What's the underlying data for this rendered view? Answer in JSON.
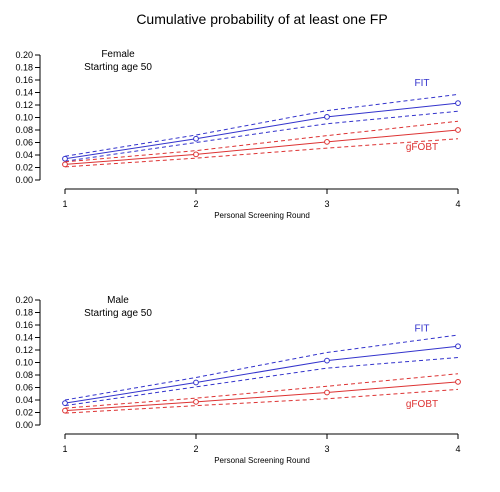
{
  "title": "Cumulative probability of at least one FP",
  "colors": {
    "FIT": "#3333cc",
    "gFOBT": "#dd3333",
    "axis": "#000000"
  },
  "chart_data": [
    {
      "type": "line",
      "annotation": [
        "Female",
        "Starting age 50"
      ],
      "xlabel": "Personal Screening Round",
      "ylabel": "",
      "x": [
        1,
        2,
        3,
        4
      ],
      "xticks": [
        "1",
        "2",
        "3",
        "4"
      ],
      "ylim": [
        0,
        0.2
      ],
      "yticks": [
        "0.00",
        "0.02",
        "0.04",
        "0.06",
        "0.08",
        "0.10",
        "0.12",
        "0.14",
        "0.16",
        "0.18",
        "0.20"
      ],
      "series": [
        {
          "name": "FIT",
          "values": [
            0.034,
            0.066,
            0.101,
            0.123
          ],
          "lower": [
            0.03,
            0.06,
            0.09,
            0.11
          ],
          "upper": [
            0.038,
            0.072,
            0.111,
            0.137
          ]
        },
        {
          "name": "gFOBT",
          "values": [
            0.025,
            0.041,
            0.061,
            0.08
          ],
          "lower": [
            0.021,
            0.035,
            0.051,
            0.066
          ],
          "upper": [
            0.029,
            0.047,
            0.071,
            0.094
          ]
        }
      ]
    },
    {
      "type": "line",
      "annotation": [
        "Male",
        "Starting age 50"
      ],
      "xlabel": "Personal Screening Round",
      "ylabel": "",
      "x": [
        1,
        2,
        3,
        4
      ],
      "xticks": [
        "1",
        "2",
        "3",
        "4"
      ],
      "ylim": [
        0,
        0.2
      ],
      "yticks": [
        "0.00",
        "0.02",
        "0.04",
        "0.06",
        "0.08",
        "0.10",
        "0.12",
        "0.14",
        "0.16",
        "0.18",
        "0.20"
      ],
      "series": [
        {
          "name": "FIT",
          "values": [
            0.035,
            0.068,
            0.103,
            0.126
          ],
          "lower": [
            0.031,
            0.061,
            0.091,
            0.108
          ],
          "upper": [
            0.04,
            0.076,
            0.116,
            0.144
          ]
        },
        {
          "name": "gFOBT",
          "values": [
            0.023,
            0.037,
            0.052,
            0.069
          ],
          "lower": [
            0.019,
            0.031,
            0.042,
            0.057
          ],
          "upper": [
            0.027,
            0.043,
            0.062,
            0.082
          ]
        }
      ]
    }
  ]
}
